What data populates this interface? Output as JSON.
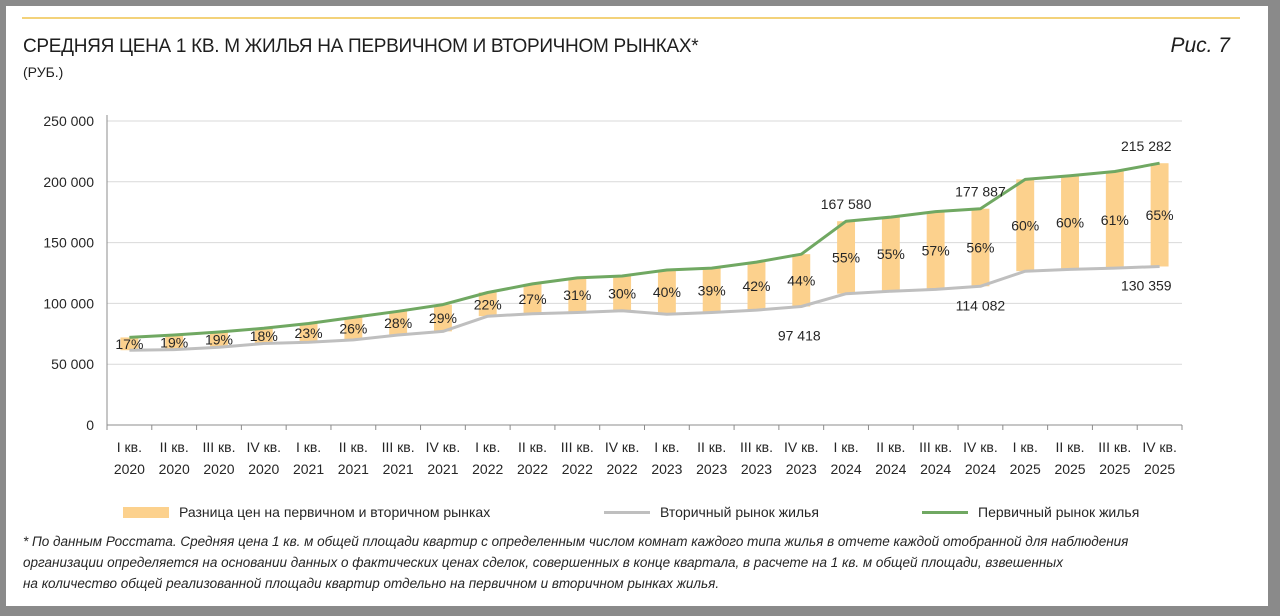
{
  "header": {
    "title": "СРЕДНЯЯ ЦЕНА 1 КВ. М ЖИЛЬЯ НА ПЕРВИЧНОМ И ВТОРИЧНОМ РЫНКАХ*",
    "subtitle": "(РУБ.)",
    "figure_label": "Рис. 7"
  },
  "colors": {
    "primary": "#70a862",
    "secondary": "#bfbfbf",
    "difference": "#fcd18d",
    "accent": "#f3d27a"
  },
  "legend": {
    "difference": "Разница цен на первичном и вторичном рынках",
    "secondary": "Вторичный рынок жилья",
    "primary": "Первичный рынок жилья"
  },
  "footnote": [
    "* По данным Росстата. Средняя цена 1 кв. м общей площади квартир с определенным числом комнат каждого типа жилья в отчете каждой отобранной для наблюдения",
    "организации определяется на основании данных о фактических ценах сделок, совершенных в конце квартала, в расчете на 1 кв. м общей площади, взвешенных",
    "на количество общей реализованной площади квартир отдельно на первичном и вторичном рынках жилья."
  ],
  "chart_data": {
    "type": "line",
    "title": "СРЕДНЯЯ ЦЕНА 1 КВ. М ЖИЛЬЯ НА ПЕРВИЧНОМ И ВТОРИЧНОМ РЫНКАХ*",
    "ylabel": "(РУБ.)",
    "ylim": [
      0,
      250000
    ],
    "yticks": [
      0,
      50000,
      100000,
      150000,
      200000,
      250000
    ],
    "ytick_labels": [
      "0",
      "50 000",
      "100 000",
      "150 000",
      "200 000",
      "250 000"
    ],
    "grid": true,
    "legend_position": "bottom",
    "categories": [
      [
        "I кв.",
        "2020"
      ],
      [
        "II кв.",
        "2020"
      ],
      [
        "III кв.",
        "2020"
      ],
      [
        "IV кв.",
        "2020"
      ],
      [
        "I кв.",
        "2021"
      ],
      [
        "II кв.",
        "2021"
      ],
      [
        "III кв.",
        "2021"
      ],
      [
        "IV кв.",
        "2021"
      ],
      [
        "I кв.",
        "2022"
      ],
      [
        "II кв.",
        "2022"
      ],
      [
        "III кв.",
        "2022"
      ],
      [
        "IV кв.",
        "2022"
      ],
      [
        "I кв.",
        "2023"
      ],
      [
        "II кв.",
        "2023"
      ],
      [
        "III кв.",
        "2023"
      ],
      [
        "IV кв.",
        "2023"
      ],
      [
        "I кв.",
        "2024"
      ],
      [
        "II кв.",
        "2024"
      ],
      [
        "III кв.",
        "2024"
      ],
      [
        "IV кв.",
        "2024"
      ],
      [
        "I кв.",
        "2025"
      ],
      [
        "II кв.",
        "2025"
      ],
      [
        "III кв.",
        "2025"
      ],
      [
        "IV кв.",
        "2025"
      ]
    ],
    "series": [
      {
        "name": "Первичный рынок жилья",
        "values": [
          72000,
          74000,
          76500,
          79500,
          83500,
          88500,
          93500,
          99000,
          109000,
          116000,
          121000,
          122500,
          127500,
          129000,
          134000,
          140500,
          167580,
          171000,
          175500,
          177887,
          202000,
          205000,
          208500,
          215282
        ]
      },
      {
        "name": "Вторичный рынок жилья",
        "values": [
          61500,
          62000,
          64000,
          67000,
          68000,
          70000,
          74000,
          77000,
          89500,
          91500,
          92500,
          94000,
          91000,
          92500,
          94500,
          97418,
          108000,
          110000,
          111500,
          114082,
          126500,
          128000,
          129000,
          130359
        ]
      },
      {
        "name": "Разница цен на первичном и вторичном рынках",
        "percent_labels": [
          "17%",
          "19%",
          "19%",
          "18%",
          "23%",
          "26%",
          "28%",
          "29%",
          "22%",
          "27%",
          "31%",
          "30%",
          "40%",
          "39%",
          "42%",
          "44%",
          "55%",
          "55%",
          "57%",
          "56%",
          "60%",
          "60%",
          "61%",
          "65%"
        ]
      }
    ],
    "annotations": [
      {
        "series": "Первичный рынок жилья",
        "index": 16,
        "text": "167 580"
      },
      {
        "series": "Первичный рынок жилья",
        "index": 19,
        "text": "177 887"
      },
      {
        "series": "Первичный рынок жилья",
        "index": 23,
        "text": "215 282"
      },
      {
        "series": "Вторичный рынок жилья",
        "index": 15,
        "text": "97 418"
      },
      {
        "series": "Вторичный рынок жилья",
        "index": 19,
        "text": "114 082"
      },
      {
        "series": "Вторичный рынок жилья",
        "index": 23,
        "text": "130 359"
      }
    ]
  }
}
